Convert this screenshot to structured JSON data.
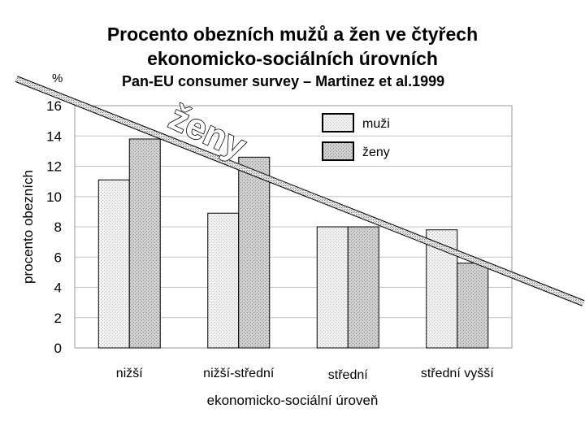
{
  "title_line1": "Procento obezních mužů a žen ve čtyřech",
  "title_line2": "ekonomicko-sociálních úrovních",
  "subtitle": "Pan-EU consumer survey – Martinez et al.1999",
  "unit_label": "%",
  "chart_data": {
    "type": "bar",
    "categories": [
      "nižší",
      "nižší-střední",
      "střední",
      "střední vyšší"
    ],
    "series": [
      {
        "name": "muži",
        "values": [
          11.1,
          8.9,
          8.0,
          7.8
        ]
      },
      {
        "name": "ženy",
        "values": [
          13.8,
          12.6,
          8.0,
          5.6
        ]
      }
    ],
    "xlabel": "ekonomicko-sociální úroveň",
    "ylabel": "procento obezních",
    "ylim": [
      0,
      16
    ],
    "yticks": [
      0,
      2,
      4,
      6,
      8,
      10,
      12,
      14,
      16
    ],
    "grid": true,
    "legend_position": "top-right",
    "annotation": {
      "text": "ženy",
      "type": "trend-line"
    }
  }
}
